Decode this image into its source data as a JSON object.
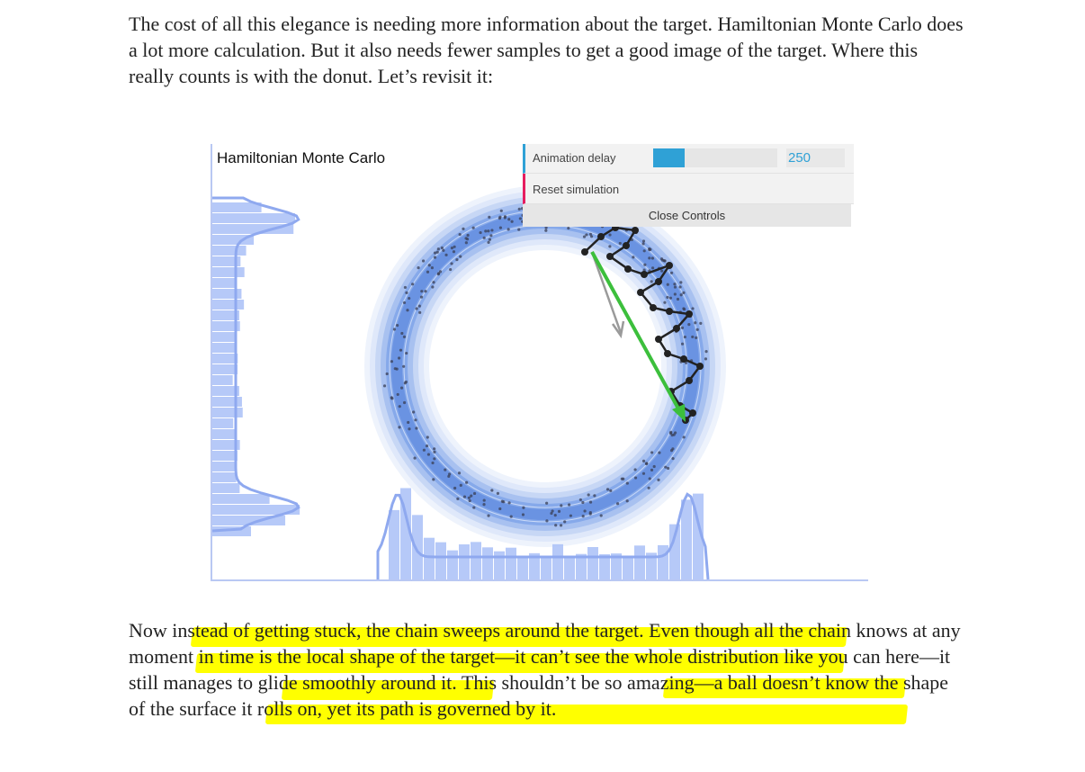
{
  "article": {
    "paragraph1": "The cost of all this elegance is needing more information about the target. Hamiltonian Monte Carlo does a lot more calculation. But it also needs fewer samples to get a good image of the target. Where this really counts is with the donut. Let’s revisit it:",
    "paragraph2": "Now instead of getting stuck, the chain sweeps around the target. Even though all the chain knows at any moment in time is the local shape of the target—it can’t see the whole distribution like you can here—it still manages to glide smoothly around it. This shouldn’t be so amazing—a ball doesn’t know the shape of the surface it rolls on, yet its path is governed by it."
  },
  "visualization": {
    "title": "Hamiltonian Monte Carlo",
    "colors": {
      "density": "#4a7fd6",
      "histogram": "#a9bff7",
      "chain": "#222222",
      "momentum_arrow": "#3cbf3c",
      "gradient_arrow": "#9a9a9a",
      "highlight": "#ffff00"
    }
  },
  "controls": {
    "animation_delay_label": "Animation delay",
    "animation_delay_value": "250",
    "animation_delay_fraction": 0.25,
    "reset_label": "Reset simulation",
    "close_label": "Close Controls",
    "colors": {
      "delay_accent": "#2fa1d6",
      "reset_accent": "#e61d5f"
    }
  }
}
